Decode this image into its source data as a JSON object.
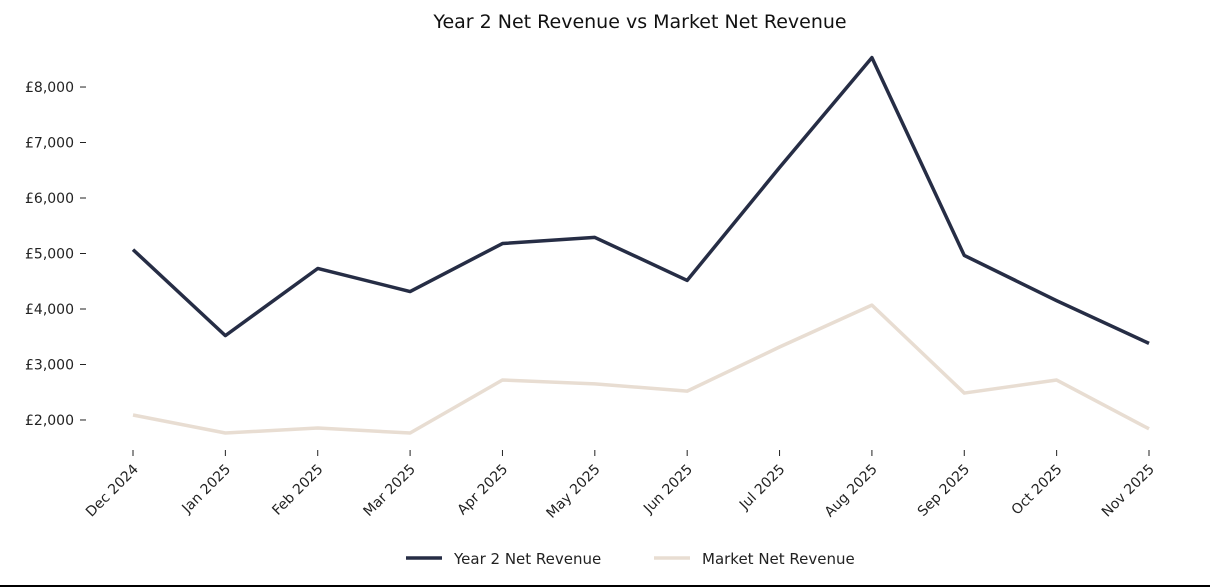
{
  "chart_data": {
    "type": "line",
    "title": "Year 2 Net Revenue vs Market Net Revenue",
    "xlabel": "",
    "ylabel": "",
    "categories": [
      "Dec 2024",
      "Jan 2025",
      "Feb 2025",
      "Mar 2025",
      "Apr 2025",
      "May 2025",
      "Jun 2025",
      "Jul 2025",
      "Aug 2025",
      "Sep 2025",
      "Oct 2025",
      "Nov 2025"
    ],
    "series": [
      {
        "name": "Year 2 Net Revenue",
        "color": "#262d45",
        "values": [
          5070,
          3520,
          4730,
          4315,
          5180,
          5290,
          4515,
          6550,
          8530,
          4965,
          4150,
          3380
        ]
      },
      {
        "name": "Market Net Revenue",
        "color": "#e8ddd2",
        "values": [
          2090,
          1765,
          1855,
          1765,
          2720,
          2650,
          2520,
          3315,
          4070,
          2485,
          2720,
          1840
        ]
      }
    ],
    "yticks": [
      2000,
      3000,
      4000,
      5000,
      6000,
      7000,
      8000
    ],
    "ytick_labels": [
      "£2,000",
      "£3,000",
      "£4,000",
      "£5,000",
      "£6,000",
      "£7,000",
      "£8,000"
    ],
    "ylim": [
      1450,
      8750
    ],
    "grid": false,
    "legend_placement": "bottom-center"
  }
}
